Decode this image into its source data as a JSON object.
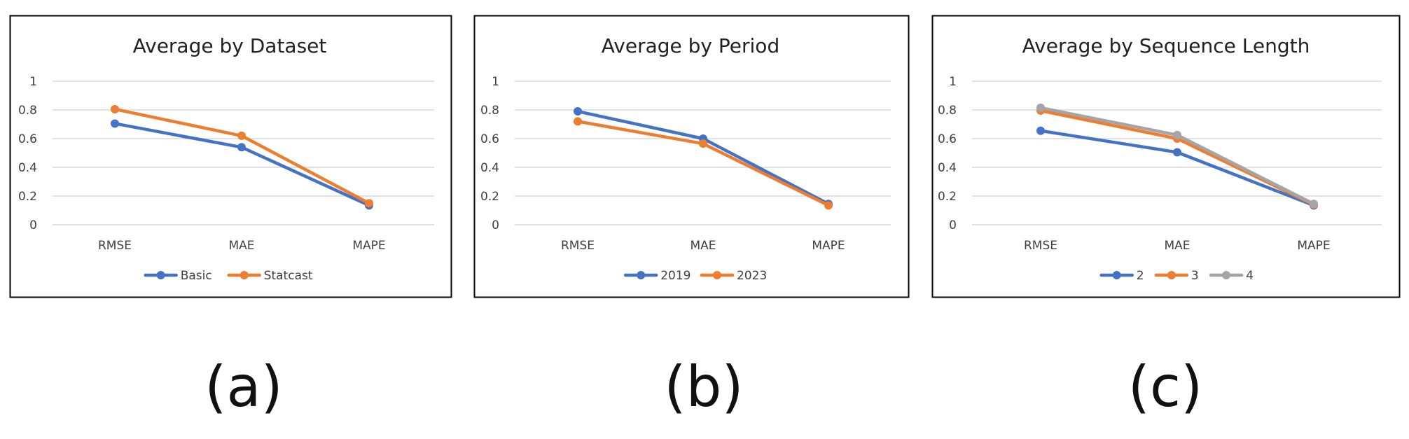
{
  "colors": {
    "blue": "#4472C4",
    "orange": "#ED7D31",
    "gray": "#A5A5A5",
    "grid": "#D9D9D9",
    "frame": "#000000"
  },
  "captions": [
    "(a)",
    "(b)",
    "(c)"
  ],
  "chart_data": [
    {
      "type": "line",
      "title": "Average by Dataset",
      "categories": [
        "RMSE",
        "MAE",
        "MAPE"
      ],
      "y_ticks": [
        "0",
        "0.2",
        "0.4",
        "0.6",
        "0.8",
        "1"
      ],
      "ylim": [
        0,
        1
      ],
      "grid": true,
      "legend": "bottom",
      "series": [
        {
          "name": "Basic",
          "color": "#4472C4",
          "values": [
            0.705,
            0.54,
            0.135
          ]
        },
        {
          "name": "Statcast",
          "color": "#ED7D31",
          "values": [
            0.805,
            0.62,
            0.15
          ]
        }
      ]
    },
    {
      "type": "line",
      "title": "Average by Period",
      "categories": [
        "RMSE",
        "MAE",
        "MAPE"
      ],
      "y_ticks": [
        "0",
        "0.2",
        "0.4",
        "0.6",
        "0.8",
        "1"
      ],
      "ylim": [
        0,
        1
      ],
      "grid": true,
      "legend": "bottom",
      "series": [
        {
          "name": "2019",
          "color": "#4472C4",
          "values": [
            0.79,
            0.6,
            0.145
          ]
        },
        {
          "name": "2023",
          "color": "#ED7D31",
          "values": [
            0.72,
            0.565,
            0.135
          ]
        }
      ]
    },
    {
      "type": "line",
      "title": "Average by Sequence Length",
      "categories": [
        "RMSE",
        "MAE",
        "MAPE"
      ],
      "y_ticks": [
        "0",
        "0.2",
        "0.4",
        "0.6",
        "0.8",
        "1"
      ],
      "ylim": [
        0,
        1
      ],
      "grid": true,
      "legend": "bottom",
      "series": [
        {
          "name": "2",
          "color": "#4472C4",
          "values": [
            0.655,
            0.505,
            0.135
          ]
        },
        {
          "name": "3",
          "color": "#ED7D31",
          "values": [
            0.795,
            0.6,
            0.14
          ]
        },
        {
          "name": "4",
          "color": "#A5A5A5",
          "values": [
            0.815,
            0.625,
            0.145
          ]
        }
      ]
    }
  ]
}
